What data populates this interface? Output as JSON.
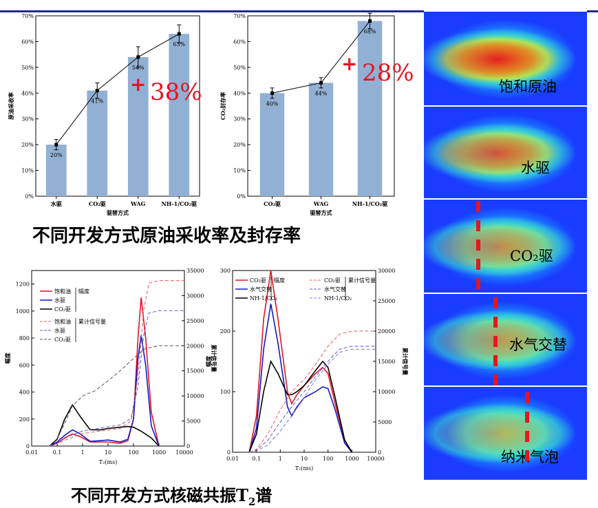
{
  "titles": {
    "top": "不同开发方式原油采收率及封存率",
    "bottom_pre": "不同开发方式核磁共振",
    "bottom_T": "T",
    "bottom_sub": "2",
    "bottom_post": "谱"
  },
  "annotations": {
    "c1_gain": "38%",
    "c2_gain": "28%",
    "plus": "+"
  },
  "panels": {
    "labels": [
      "饱和原油",
      "水驱",
      "CO₂驱",
      "水气交替",
      "纳米气泡"
    ],
    "colors": {
      "background": "#1a3cff",
      "hot": "#e8141e",
      "dash": "#e8141e"
    }
  },
  "chart_data": [
    {
      "type": "bar",
      "categories": [
        "水驱",
        "CO₂驱",
        "WAG",
        "NH-1/CO₂驱"
      ],
      "values": [
        20,
        41,
        54,
        63
      ],
      "errors": [
        2,
        3,
        4,
        3.5
      ],
      "data_labels": [
        "20%",
        "41%",
        "54%",
        "63%"
      ],
      "line_overlay": true,
      "xlabel": "驱替方式",
      "ylabel": "原油采收率",
      "ylim": [
        0,
        70
      ],
      "yticks": [
        "0%",
        "10%",
        "20%",
        "30%",
        "40%",
        "50%",
        "60%",
        "70%"
      ],
      "bar_color": "#92b0d3"
    },
    {
      "type": "bar",
      "categories": [
        "CO₂驱",
        "WAG",
        "NH-1/CO₂驱"
      ],
      "values": [
        40,
        44,
        68
      ],
      "errors": [
        2,
        2,
        3
      ],
      "data_labels": [
        "40%",
        "44%",
        "68%"
      ],
      "line_overlay": true,
      "xlabel": "驱替方式",
      "ylabel": "CO₂封存率",
      "ylim": [
        0,
        70
      ],
      "yticks": [
        "0%",
        "10%",
        "20%",
        "30%",
        "40%",
        "50%",
        "60%",
        "70%"
      ],
      "bar_color": "#92b0d3"
    },
    {
      "type": "line",
      "xscale": "log",
      "xlim": [
        0.01,
        10000
      ],
      "xticks": [
        "0.01",
        "0.1",
        "1",
        "10",
        "100",
        "1000",
        "10000"
      ],
      "xlabel": "T₂(ms)",
      "ylabel": "幅度",
      "ylim": [
        0,
        1300
      ],
      "yticks": [
        "0",
        "200",
        "400",
        "600",
        "800",
        "1000",
        "1200"
      ],
      "y2label": "累计信号量",
      "y2lim": [
        0,
        35000
      ],
      "y2ticks": [
        "0",
        "5000",
        "10000",
        "15000",
        "20000",
        "25000",
        "30000",
        "35000"
      ],
      "legend": {
        "amplitude": [
          "饱和油",
          "水驱",
          "CO₂驱"
        ],
        "amplitude_label": "幅度",
        "cumulative": [
          "饱和油",
          "水驱",
          "CO₂驱"
        ],
        "cumulative_label": "累计信号量"
      },
      "series": [
        {
          "name": "饱和油",
          "axis": "left",
          "style": "solid",
          "color": "#e0141e",
          "x": [
            0.05,
            0.1,
            0.2,
            0.4,
            0.8,
            2,
            5,
            10,
            30,
            60,
            100,
            150,
            200,
            300,
            500,
            1000
          ],
          "y": [
            0,
            20,
            60,
            90,
            70,
            30,
            30,
            30,
            20,
            40,
            200,
            800,
            1100,
            800,
            250,
            0
          ]
        },
        {
          "name": "水驱",
          "axis": "left",
          "style": "solid",
          "color": "#1414c8",
          "x": [
            0.05,
            0.1,
            0.2,
            0.4,
            0.8,
            2,
            5,
            10,
            30,
            60,
            100,
            150,
            200,
            300,
            500,
            1000
          ],
          "y": [
            0,
            30,
            80,
            120,
            90,
            35,
            40,
            45,
            30,
            50,
            200,
            650,
            820,
            600,
            150,
            0
          ]
        },
        {
          "name": "CO₂驱",
          "axis": "left",
          "style": "solid",
          "color": "#000000",
          "x": [
            0.05,
            0.1,
            0.2,
            0.4,
            0.8,
            2,
            5,
            10,
            30,
            60,
            100,
            200,
            500,
            1000
          ],
          "y": [
            0,
            50,
            200,
            305,
            220,
            120,
            120,
            130,
            140,
            145,
            140,
            110,
            60,
            0
          ]
        },
        {
          "name": "饱和油",
          "axis": "right",
          "style": "dashed",
          "color": "#e85a5a",
          "x": [
            0.05,
            0.1,
            0.3,
            1,
            5,
            30,
            80,
            150,
            250,
            400,
            1000,
            10000
          ],
          "y": [
            0,
            500,
            1500,
            2500,
            3000,
            3500,
            5000,
            14000,
            27000,
            32500,
            33000,
            33000
          ]
        },
        {
          "name": "水驱",
          "axis": "right",
          "style": "dashed",
          "color": "#5a5ad8",
          "x": [
            0.05,
            0.1,
            0.3,
            1,
            5,
            30,
            80,
            150,
            250,
            400,
            1000,
            10000
          ],
          "y": [
            0,
            600,
            2000,
            3000,
            3600,
            4200,
            5500,
            12000,
            22000,
            26500,
            27000,
            27000
          ]
        },
        {
          "name": "CO₂驱",
          "axis": "right",
          "style": "dashed",
          "color": "#555555",
          "x": [
            0.05,
            0.1,
            0.2,
            0.4,
            1,
            3,
            10,
            30,
            100,
            300,
            1000,
            10000
          ],
          "y": [
            0,
            1500,
            4500,
            8000,
            10000,
            11000,
            13000,
            15000,
            17500,
            19500,
            20000,
            20000
          ]
        }
      ]
    },
    {
      "type": "line",
      "xscale": "log",
      "xlim": [
        0.01,
        10000
      ],
      "xticks": [
        "0.01",
        "0.1",
        "1",
        "10",
        "100",
        "1000",
        "10000"
      ],
      "xlabel": "T₂(ms)",
      "ylabel": "幅度",
      "ylim": [
        0,
        300
      ],
      "yticks": [
        "0",
        "100",
        "200",
        "300"
      ],
      "y2label": "累计信号量",
      "y2lim": [
        0,
        30000
      ],
      "y2ticks": [
        "0",
        "5000",
        "10000",
        "15000",
        "20000",
        "25000",
        "30000"
      ],
      "legend": {
        "amplitude": [
          "CO₂驱",
          "水气交替",
          "NH-1/CO₂"
        ],
        "amplitude_label": "幅度",
        "cumulative": [
          "CO₂驱",
          "水气交替",
          "NH-1/CO₂"
        ],
        "cumulative_label": "累计信号量"
      },
      "series": [
        {
          "name": "CO₂驱",
          "axis": "left",
          "style": "solid",
          "color": "#e0141e",
          "x": [
            0.05,
            0.1,
            0.2,
            0.4,
            0.8,
            2,
            3,
            5,
            10,
            30,
            60,
            100,
            200,
            500,
            1000
          ],
          "y": [
            0,
            60,
            220,
            300,
            220,
            100,
            80,
            95,
            110,
            130,
            140,
            130,
            80,
            20,
            0
          ]
        },
        {
          "name": "水气交替",
          "axis": "left",
          "style": "solid",
          "color": "#1414c8",
          "x": [
            0.05,
            0.1,
            0.2,
            0.4,
            0.8,
            2,
            3,
            5,
            10,
            30,
            60,
            100,
            200,
            500,
            1000
          ],
          "y": [
            0,
            40,
            170,
            245,
            180,
            75,
            60,
            75,
            90,
            100,
            108,
            105,
            70,
            15,
            0
          ]
        },
        {
          "name": "NH-1/CO₂",
          "axis": "left",
          "style": "solid",
          "color": "#000000",
          "x": [
            0.05,
            0.1,
            0.2,
            0.4,
            0.8,
            2,
            3,
            5,
            10,
            30,
            60,
            100,
            200,
            500,
            1000
          ],
          "y": [
            0,
            30,
            100,
            150,
            130,
            95,
            95,
            100,
            110,
            135,
            150,
            140,
            90,
            20,
            0
          ]
        },
        {
          "name": "CO₂驱",
          "axis": "right",
          "style": "dashed",
          "color": "#e85a5a",
          "x": [
            0.05,
            0.1,
            0.3,
            1,
            3,
            10,
            30,
            100,
            300,
            1000,
            10000
          ],
          "y": [
            0,
            500,
            3000,
            7000,
            10000,
            12000,
            14500,
            17500,
            19500,
            20000,
            20000
          ]
        },
        {
          "name": "水气交替",
          "axis": "right",
          "style": "dashed",
          "color": "#5a5ad8",
          "x": [
            0.05,
            0.1,
            0.3,
            1,
            3,
            10,
            30,
            100,
            300,
            1000,
            10000
          ],
          "y": [
            0,
            300,
            2000,
            5000,
            7500,
            10000,
            12500,
            15000,
            17000,
            17500,
            17500
          ]
        },
        {
          "name": "NH-1/CO₂",
          "axis": "right",
          "style": "dashed",
          "color": "#7a7ad8",
          "x": [
            0.05,
            0.1,
            0.3,
            1,
            3,
            10,
            30,
            100,
            300,
            1000,
            10000
          ],
          "y": [
            0,
            200,
            1200,
            3500,
            6000,
            9000,
            12000,
            14500,
            16500,
            17000,
            17000
          ]
        }
      ]
    }
  ]
}
